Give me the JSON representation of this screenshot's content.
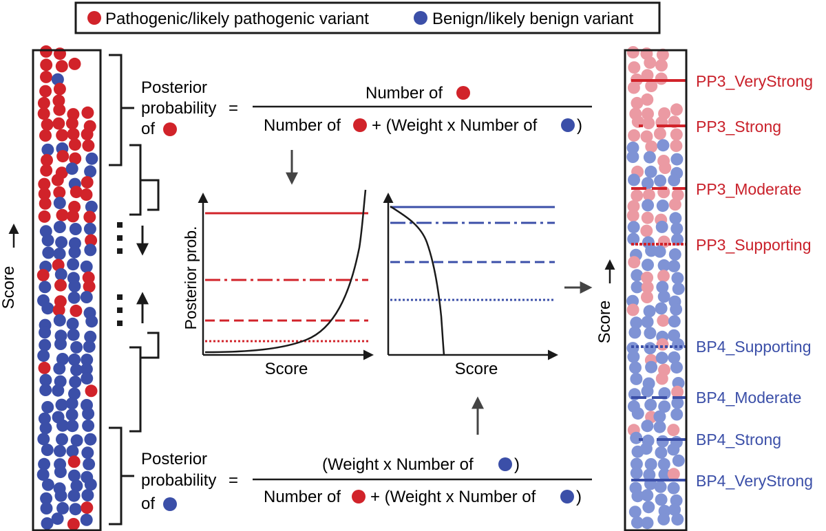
{
  "legend": {
    "pathogenic": "Pathogenic/likely pathogenic variant",
    "benign": "Benign/likely benign variant"
  },
  "colors": {
    "pathogenic": "#d1232a",
    "benign": "#3b4fa8",
    "pathogenic_light": "#eb9aa3",
    "benign_light": "#7f93d5",
    "ink": "#1a1a1a"
  },
  "left_axis": {
    "label": "Score"
  },
  "right_axis": {
    "label": "Score"
  },
  "formula_top": {
    "lhs_line1": "Posterior",
    "lhs_line2": "probability",
    "lhs_equals": "=",
    "lhs_line3": "of",
    "numerator": "Number of",
    "denominator_a": "Number of",
    "denominator_b": "+ (Weight x Number of",
    "denominator_c": ")"
  },
  "formula_bottom": {
    "lhs_line1": "Posterior",
    "lhs_line2": "probability",
    "lhs_equals": "=",
    "lhs_line3": "of",
    "numerator_a": "(Weight x Number of",
    "numerator_b": ")",
    "denominator_a": "Number of",
    "denominator_b": "+ (Weight x Number of",
    "denominator_c": ")"
  },
  "plot_left": {
    "ylabel": "Posterior prob.",
    "xlabel": "Score"
  },
  "plot_right": {
    "xlabel": "Score"
  },
  "thresholds_pp3": [
    "PP3_VeryStrong",
    "PP3_Strong",
    "PP3_Moderate",
    "PP3_Supporting"
  ],
  "thresholds_bp4": [
    "BP4_Supporting",
    "BP4_Moderate",
    "BP4_Strong",
    "BP4_VeryStrong"
  ]
}
